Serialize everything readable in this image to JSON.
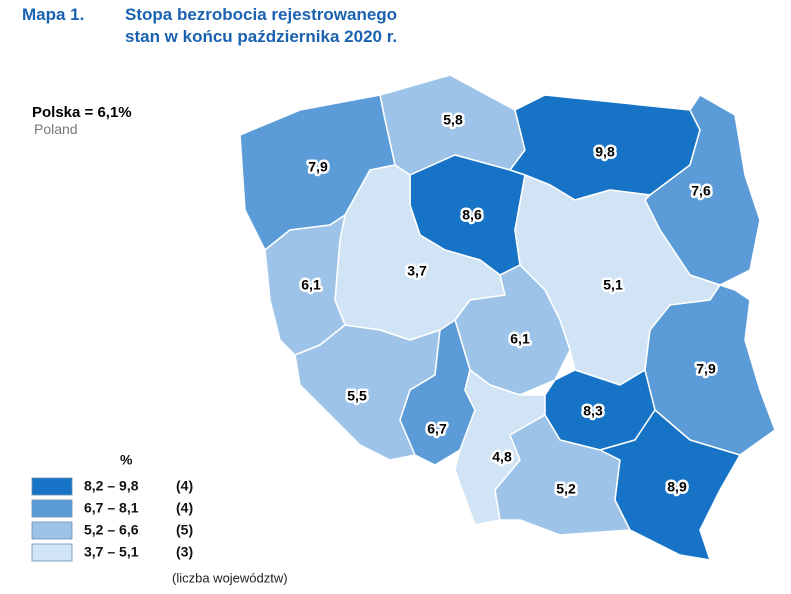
{
  "header": {
    "label": "Mapa 1.",
    "title_line1": "Stopa bezrobocia rejestrowanego",
    "title_line2": "stan w końcu października 2020 r."
  },
  "national": {
    "label": "Polska = 6,1%",
    "label_en": "Poland"
  },
  "legend": {
    "unit": "%",
    "note": "(liczba województw)",
    "classes": [
      {
        "range": "8,2 – 9,8",
        "count": "(4)",
        "color": "#1673c6"
      },
      {
        "range": "6,7 – 8,1",
        "count": "(4)",
        "color": "#5b9bd8"
      },
      {
        "range": "5,2 – 6,6",
        "count": "(5)",
        "color": "#9dc4e8"
      },
      {
        "range": "3,7 – 5,1",
        "count": "(3)",
        "color": "#d0e4f5"
      }
    ]
  },
  "regions": [
    {
      "value": "5,8",
      "color": "#9dc4e8"
    },
    {
      "value": "9,8",
      "color": "#1673c6"
    },
    {
      "value": "7,6",
      "color": "#5b9bd8"
    },
    {
      "value": "7,9",
      "color": "#5b9bd8"
    },
    {
      "value": "8,6",
      "color": "#1673c6"
    },
    {
      "value": "3,7",
      "color": "#d0e4f5"
    },
    {
      "value": "6,1",
      "color": "#9dc4e8"
    },
    {
      "value": "5,1",
      "color": "#d0e4f5"
    },
    {
      "value": "6,1",
      "color": "#9dc4e8"
    },
    {
      "value": "5,5",
      "color": "#9dc4e8"
    },
    {
      "value": "6,7",
      "color": "#5b9bd8"
    },
    {
      "value": "4,8",
      "color": "#d0e4f5"
    },
    {
      "value": "8,3",
      "color": "#1673c6"
    },
    {
      "value": "7,9",
      "color": "#5b9bd8"
    },
    {
      "value": "5,2",
      "color": "#9dc4e8"
    },
    {
      "value": "8,9",
      "color": "#1673c6"
    }
  ]
}
